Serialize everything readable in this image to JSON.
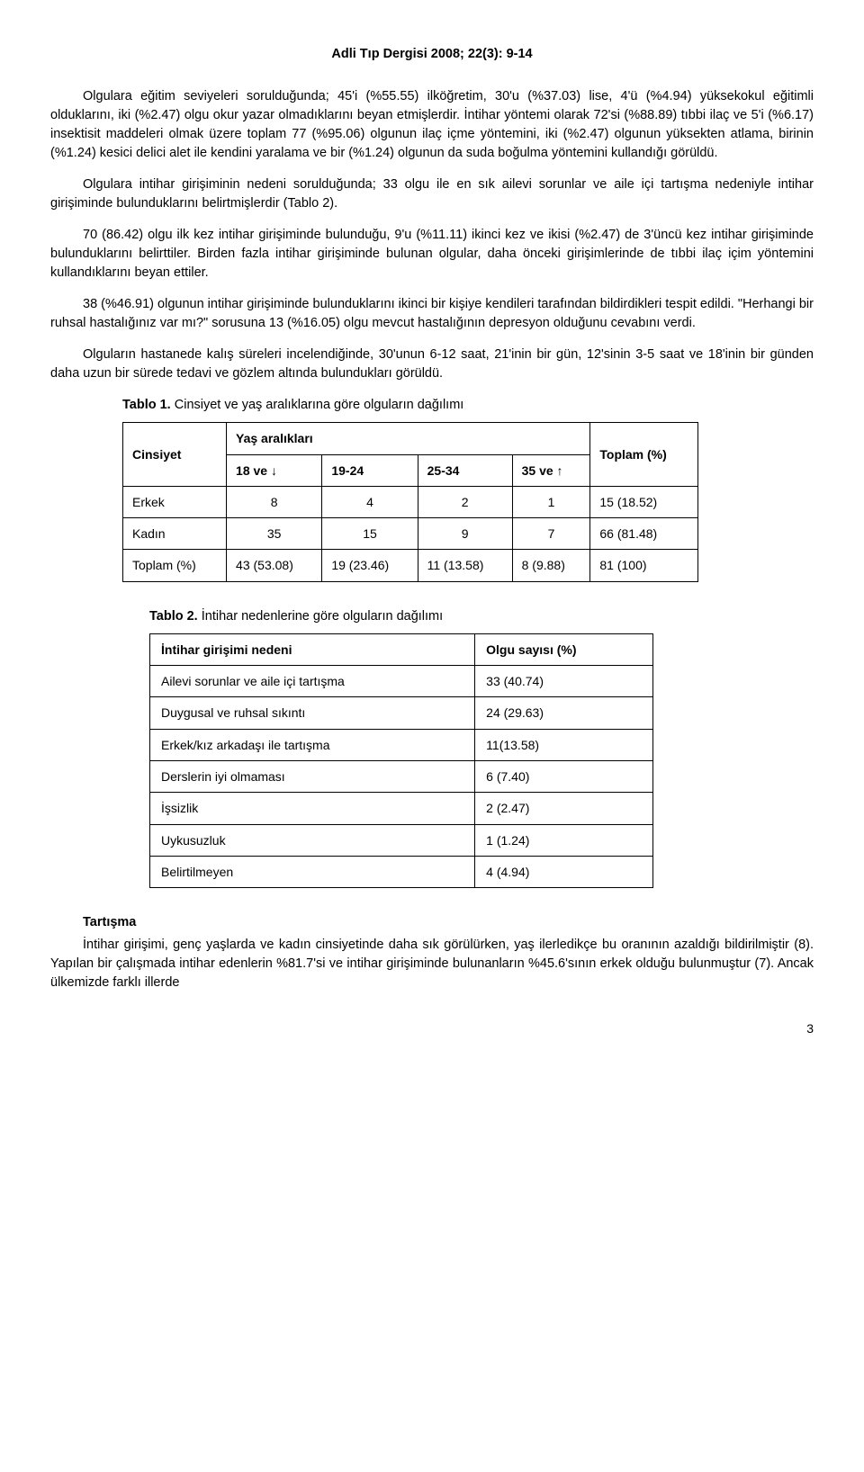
{
  "header": "Adli Tıp Dergisi 2008; 22(3): 9-14",
  "para1": "Olgulara eğitim seviyeleri sorulduğunda; 45'i (%55.55) ilköğretim, 30'u (%37.03) lise, 4'ü (%4.94) yüksekokul eğitimli olduklarını, iki (%2.47) olgu okur yazar olmadıklarını beyan etmişlerdir. İntihar yöntemi olarak 72'si (%88.89) tıbbi ilaç ve 5'i (%6.17) insektisit maddeleri olmak üzere toplam 77 (%95.06) olgunun ilaç içme yöntemini, iki (%2.47) olgunun yüksekten atlama, birinin (%1.24) kesici delici alet ile kendini yaralama ve bir (%1.24) olgunun da suda boğulma yöntemini kullandığı görüldü.",
  "para2": "Olgulara intihar girişiminin nedeni sorulduğunda; 33 olgu ile en sık ailevi sorunlar ve aile içi tartışma nedeniyle intihar girişiminde bulunduklarını belirtmişlerdir (Tablo 2).",
  "para3": "70 (86.42) olgu ilk kez intihar girişiminde bulunduğu, 9'u (%11.11) ikinci kez ve ikisi (%2.47) de 3'üncü kez intihar girişiminde bulunduklarını belirttiler. Birden fazla intihar girişiminde bulunan olgular, daha önceki girişimlerinde de tıbbi ilaç içim yöntemini kullandıklarını beyan ettiler.",
  "para4": "38 (%46.91) olgunun intihar girişiminde bulunduklarını ikinci bir kişiye kendileri tarafından bildirdikleri tespit edildi. \"Herhangi bir ruhsal hastalığınız var mı?\" sorusuna 13 (%16.05) olgu mevcut hastalığının depresyon olduğunu cevabını verdi.",
  "para5": "Olguların hastanede kalış süreleri incelendiğinde, 30'unun 6-12 saat, 21'inin bir gün, 12'sinin 3-5 saat ve 18'inin bir günden daha uzun bir sürede tedavi ve gözlem altında bulundukları görüldü.",
  "table1": {
    "caption_bold": "Tablo 1.",
    "caption_text": " Cinsiyet ve yaş aralıklarına göre olguların dağılımı",
    "head_cinsiyet": "Cinsiyet",
    "head_yas": "Yaş aralıkları",
    "head_toplam": "Toplam (%)",
    "cols": {
      "c1": "18 ve ↓",
      "c2": "19-24",
      "c3": "25-34",
      "c4": "35 ve ↑"
    },
    "rows": [
      {
        "label": "Erkek",
        "c1": "8",
        "c2": "4",
        "c3": "2",
        "c4": "1",
        "tot": "15 (18.52)"
      },
      {
        "label": "Kadın",
        "c1": "35",
        "c2": "15",
        "c3": "9",
        "c4": "7",
        "tot": "66 (81.48)"
      },
      {
        "label": "Toplam (%)",
        "c1": "43 (53.08)",
        "c2": "19 (23.46)",
        "c3": "11 (13.58)",
        "c4": "8 (9.88)",
        "tot": "81 (100)"
      }
    ]
  },
  "table2": {
    "caption_bold": "Tablo 2.",
    "caption_text": " İntihar nedenlerine göre olguların dağılımı",
    "head_left": "İntihar girişimi nedeni",
    "head_right": "Olgu sayısı (%)",
    "rows": [
      {
        "l": "Ailevi sorunlar ve aile içi tartışma",
        "r": "33 (40.74)"
      },
      {
        "l": "Duygusal ve ruhsal sıkıntı",
        "r": "24 (29.63)"
      },
      {
        "l": "Erkek/kız arkadaşı ile tartışma",
        "r": "11(13.58)"
      },
      {
        "l": "Derslerin iyi olmaması",
        "r": "6 (7.40)"
      },
      {
        "l": "İşsizlik",
        "r": "2 (2.47)"
      },
      {
        "l": "Uykusuzluk",
        "r": "1 (1.24)"
      },
      {
        "l": "Belirtilmeyen",
        "r": "4 (4.94)"
      }
    ]
  },
  "section_title": "Tartışma",
  "para6": "İntihar girişimi, genç yaşlarda ve kadın cinsiyetinde daha sık görülürken, yaş ilerledikçe bu oranının azaldığı bildirilmiştir (8). Yapılan bir çalışmada intihar edenlerin %81.7'si ve intihar girişiminde bulunanların %45.6'sının erkek olduğu bulunmuştur (7). Ancak ülkemizde farklı illerde",
  "page_number": "3"
}
